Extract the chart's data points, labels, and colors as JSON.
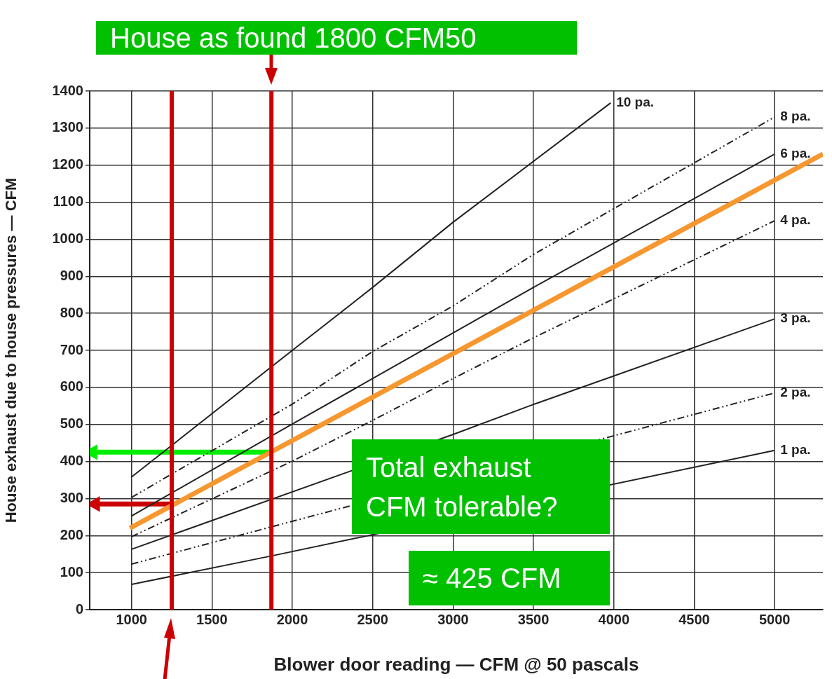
{
  "chart_data": {
    "type": "line",
    "xlabel": "Blower door reading — CFM @ 50 pascals",
    "ylabel": "House exhaust due to house pressures — CFM",
    "annotations": [
      "House as found 1800 CFM50",
      "Total exhaust CFM tolerable?",
      "≈ 425 CFM"
    ],
    "xlim": [
      740,
      5300
    ],
    "xticks": [
      1000,
      1500,
      2000,
      2500,
      3000,
      3500,
      4000,
      4500,
      5000
    ],
    "ylim": [
      0,
      1400
    ],
    "yticks": [
      0,
      100,
      200,
      300,
      400,
      500,
      600,
      700,
      800,
      900,
      1000,
      1100,
      1200,
      1300,
      1400
    ],
    "grid": true,
    "marker": "none",
    "series": [
      {
        "name": "10 pa.",
        "color": "#222222",
        "line_style": "solid",
        "x": [
          1000,
          2000,
          2500,
          3000,
          3980
        ],
        "values": [
          358,
          700,
          870,
          1046,
          1368
        ]
      },
      {
        "name": "8 pa.",
        "color": "#222222",
        "line_style": "dashed",
        "x": [
          1000,
          2000,
          2500,
          3000,
          3500,
          5000
        ],
        "values": [
          303,
          555,
          697,
          820,
          959,
          1330
        ]
      },
      {
        "name": "6 pa.",
        "color": "#222222",
        "line_style": "solid",
        "x": [
          1000,
          2000,
          2500,
          3000,
          3500,
          5000
        ],
        "values": [
          253,
          501,
          624,
          747,
          870,
          1230
        ]
      },
      {
        "name": "4 pa.",
        "color": "#222222",
        "line_style": "dashed",
        "x": [
          1000,
          2000,
          2500,
          3000,
          3500,
          5000
        ],
        "values": [
          197,
          401,
          511,
          624,
          734,
          1050
        ]
      },
      {
        "name": "3 pa.",
        "color": "#222222",
        "line_style": "solid",
        "x": [
          1000,
          3000,
          3500,
          5000
        ],
        "values": [
          163,
          473,
          554,
          785
        ]
      },
      {
        "name": "2 pa.",
        "color": "#222222",
        "line_style": "dashed",
        "x": [
          1000,
          5000
        ],
        "values": [
          123,
          585
        ]
      },
      {
        "name": "1 pa.",
        "color": "#222222",
        "line_style": "solid",
        "x": [
          1000,
          1870,
          5000
        ],
        "values": [
          68,
          145,
          430
        ]
      },
      {
        "color": "#f7972f",
        "line_style": "solid",
        "x": [
          990,
          5300
        ],
        "values": [
          220,
          1230
        ]
      },
      {
        "color": "#00ee00",
        "line_style": "solid",
        "marker": "triangle",
        "x": [
          760,
          1870
        ],
        "values": [
          425,
          425
        ]
      },
      {
        "color": "#cc0000",
        "line_style": "solid",
        "marker": "triangle",
        "x": [
          775,
          1250
        ],
        "values": [
          285,
          285
        ]
      }
    ],
    "ref_lines": [
      {
        "axis": "x",
        "value": 1250,
        "color": "#cc0000"
      },
      {
        "axis": "x",
        "value": 1870,
        "color": "#cc0000"
      }
    ]
  }
}
